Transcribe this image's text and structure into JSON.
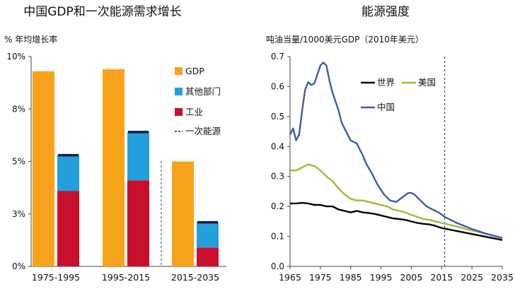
{
  "chart_data": [
    {
      "type": "bar",
      "title": "中国GDP和一次能源需求增长",
      "ylabel": "% 年均增长率",
      "ylim": [
        0,
        10
      ],
      "yticks": [
        {
          "value": 0,
          "label": "0%"
        },
        {
          "value": 2.5,
          "label": "3%"
        },
        {
          "value": 5,
          "label": "5%"
        },
        {
          "value": 7.5,
          "label": "8%"
        },
        {
          "value": 10,
          "label": "10%"
        }
      ],
      "categories": [
        "1975-1995",
        "1995-2015",
        "2015-2035"
      ],
      "series": [
        {
          "name": "GDP",
          "color": "#f7a21b",
          "values": [
            9.3,
            9.4,
            5.0
          ]
        },
        {
          "name": "其他部门",
          "color": "#23a0dc",
          "values": [
            1.7,
            2.3,
            1.2
          ]
        },
        {
          "name": "工业",
          "color": "#c8102e",
          "values": [
            3.6,
            4.1,
            0.9
          ]
        },
        {
          "name": "一次能源",
          "color": "#1a1a4e",
          "values": [
            5.3,
            6.4,
            2.1
          ]
        }
      ]
    },
    {
      "type": "line",
      "title": "能源强度",
      "ylabel": "吨油当量/1000美元GDP（2010年美元）",
      "xlim": [
        1965,
        2035
      ],
      "ylim": [
        0,
        0.7
      ],
      "xticks": [
        1965,
        1975,
        1985,
        1995,
        2005,
        2015,
        2025,
        2035
      ],
      "yticks": [
        {
          "value": 0,
          "label": "0.0"
        },
        {
          "value": 0.1,
          "label": "0.1"
        },
        {
          "value": 0.2,
          "label": "0.2"
        },
        {
          "value": 0.3,
          "label": "0.3"
        },
        {
          "value": 0.4,
          "label": "0.4"
        },
        {
          "value": 0.5,
          "label": "0.5"
        },
        {
          "value": 0.6,
          "label": "0.6"
        },
        {
          "value": 0.7,
          "label": "0.7"
        }
      ],
      "divider_year": 2016,
      "series": [
        {
          "name": "世界",
          "color": "#000000",
          "x": [
            1965,
            1967,
            1969,
            1971,
            1973,
            1975,
            1977,
            1979,
            1981,
            1983,
            1985,
            1987,
            1989,
            1991,
            1993,
            1995,
            1997,
            1999,
            2001,
            2003,
            2005,
            2007,
            2009,
            2011,
            2013,
            2015,
            2020,
            2025,
            2030,
            2035
          ],
          "y": [
            0.21,
            0.21,
            0.212,
            0.21,
            0.205,
            0.205,
            0.2,
            0.2,
            0.19,
            0.185,
            0.18,
            0.185,
            0.18,
            0.178,
            0.175,
            0.17,
            0.165,
            0.16,
            0.158,
            0.155,
            0.15,
            0.145,
            0.142,
            0.14,
            0.135,
            0.128,
            0.118,
            0.108,
            0.098,
            0.088
          ]
        },
        {
          "name": "美国",
          "color": "#9bbb3b",
          "x": [
            1965,
            1967,
            1969,
            1971,
            1973,
            1975,
            1977,
            1979,
            1981,
            1983,
            1985,
            1987,
            1989,
            1991,
            1993,
            1995,
            1997,
            1999,
            2001,
            2003,
            2005,
            2007,
            2009,
            2011,
            2013,
            2015,
            2020,
            2025,
            2030,
            2035
          ],
          "y": [
            0.32,
            0.32,
            0.33,
            0.34,
            0.335,
            0.32,
            0.3,
            0.285,
            0.26,
            0.24,
            0.225,
            0.22,
            0.22,
            0.215,
            0.21,
            0.205,
            0.2,
            0.19,
            0.185,
            0.18,
            0.172,
            0.165,
            0.158,
            0.155,
            0.15,
            0.145,
            0.133,
            0.12,
            0.108,
            0.095
          ]
        },
        {
          "name": "中国",
          "color": "#3b5ea8",
          "x": [
            1965,
            1966,
            1967,
            1968,
            1969,
            1970,
            1971,
            1972,
            1973,
            1974,
            1975,
            1976,
            1977,
            1978,
            1979,
            1980,
            1981,
            1982,
            1983,
            1984,
            1985,
            1986,
            1987,
            1988,
            1989,
            1990,
            1992,
            1994,
            1996,
            1998,
            2000,
            2002,
            2004,
            2005,
            2006,
            2008,
            2010,
            2012,
            2014,
            2016,
            2018,
            2020,
            2025,
            2030,
            2035
          ],
          "y": [
            0.44,
            0.46,
            0.42,
            0.44,
            0.52,
            0.59,
            0.615,
            0.605,
            0.61,
            0.64,
            0.67,
            0.68,
            0.67,
            0.62,
            0.58,
            0.55,
            0.52,
            0.48,
            0.46,
            0.44,
            0.42,
            0.415,
            0.41,
            0.39,
            0.37,
            0.345,
            0.31,
            0.27,
            0.24,
            0.22,
            0.215,
            0.23,
            0.245,
            0.245,
            0.24,
            0.22,
            0.2,
            0.19,
            0.18,
            0.165,
            0.155,
            0.145,
            0.125,
            0.108,
            0.095
          ]
        }
      ]
    }
  ]
}
